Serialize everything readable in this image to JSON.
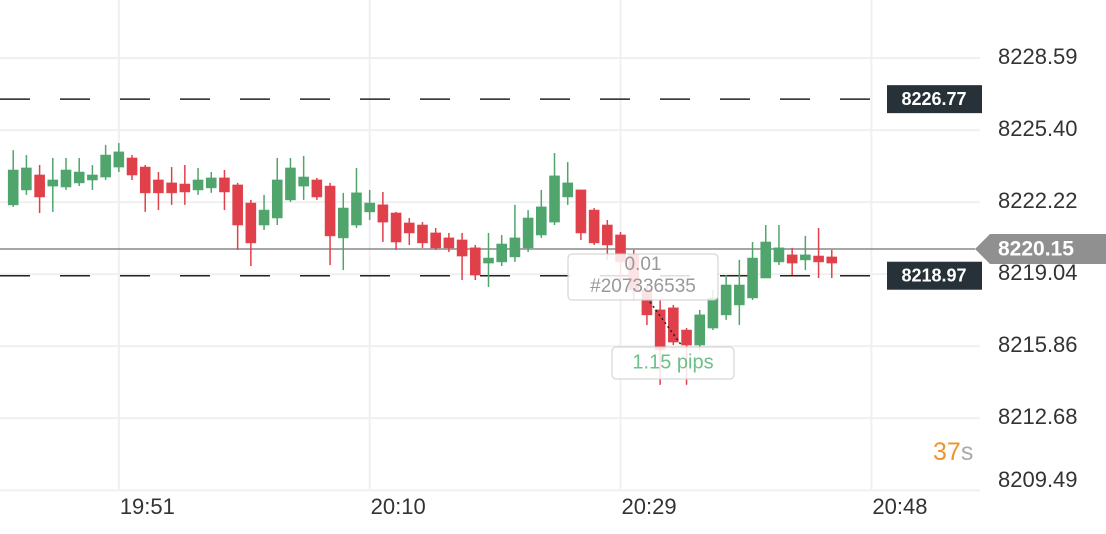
{
  "chart_data": {
    "type": "candlestick",
    "x": [
      "19:43",
      "19:44",
      "19:45",
      "19:46",
      "19:47",
      "19:48",
      "19:49",
      "19:50",
      "19:51",
      "19:52",
      "19:53",
      "19:54",
      "19:55",
      "19:56",
      "19:57",
      "19:58",
      "19:59",
      "20:00",
      "20:01",
      "20:02",
      "20:03",
      "20:04",
      "20:05",
      "20:06",
      "20:07",
      "20:08",
      "20:09",
      "20:10",
      "20:11",
      "20:12",
      "20:13",
      "20:14",
      "20:15",
      "20:16",
      "20:17",
      "20:18",
      "20:19",
      "20:20",
      "20:21",
      "20:22",
      "20:23",
      "20:24",
      "20:25",
      "20:26",
      "20:27",
      "20:28",
      "20:29",
      "20:30",
      "20:31",
      "20:32",
      "20:33",
      "20:34",
      "20:35",
      "20:36",
      "20:37",
      "20:38",
      "20:39",
      "20:40",
      "20:41",
      "20:42",
      "20:43",
      "20:44",
      "20:45"
    ],
    "open": [
      8222.1,
      8222.76,
      8223.42,
      8222.93,
      8222.89,
      8223.07,
      8223.2,
      8223.33,
      8223.77,
      8224.17,
      8223.77,
      8223.2,
      8223.07,
      8223.02,
      8222.76,
      8222.85,
      8223.29,
      8222.98,
      8222.18,
      8221.21,
      8221.52,
      8222.32,
      8222.93,
      8223.2,
      8222.93,
      8220.64,
      8221.21,
      8221.79,
      8222.1,
      8221.74,
      8221.3,
      8221.21,
      8220.86,
      8220.64,
      8220.55,
      8220.2,
      8219.53,
      8219.58,
      8219.8,
      8220.2,
      8220.77,
      8221.34,
      8222.45,
      8222.76,
      8221.87,
      8221.21,
      8220.77,
      8219.89,
      8218.34,
      8217.46,
      8217.55,
      8216.57,
      8215.91,
      8216.66,
      8217.24,
      8217.68,
      8217.99,
      8218.87,
      8219.58,
      8219.89,
      8219.67,
      8219.84,
      8219.8
    ],
    "high": [
      8224.52,
      8224.3,
      8223.86,
      8224.17,
      8224.17,
      8224.17,
      8223.86,
      8224.75,
      8224.83,
      8224.3,
      8223.86,
      8223.55,
      8223.77,
      8223.86,
      8223.73,
      8223.55,
      8223.64,
      8223.07,
      8222.32,
      8222.54,
      8224.17,
      8224.17,
      8224.26,
      8223.29,
      8223.07,
      8222.63,
      8223.73,
      8222.76,
      8222.67,
      8221.79,
      8221.52,
      8221.34,
      8221.08,
      8220.86,
      8220.86,
      8220.33,
      8220.86,
      8220.77,
      8222.1,
      8221.87,
      8222.76,
      8224.39,
      8223.99,
      8222.76,
      8221.96,
      8221.43,
      8220.9,
      8220.11,
      8218.56,
      8217.9,
      8217.68,
      8216.66,
      8217.46,
      8218.34,
      8219.0,
      8219.67,
      8220.46,
      8221.21,
      8221.21,
      8220.2,
      8220.73,
      8221.08,
      8220.11
    ],
    "low": [
      8222.01,
      8222.54,
      8221.74,
      8221.79,
      8222.76,
      8222.93,
      8222.76,
      8223.2,
      8223.55,
      8223.2,
      8221.79,
      8221.87,
      8222.1,
      8222.1,
      8222.54,
      8222.63,
      8221.87,
      8220.11,
      8219.4,
      8220.99,
      8221.21,
      8222.23,
      8222.32,
      8222.32,
      8219.44,
      8219.22,
      8221.08,
      8221.43,
      8220.46,
      8220.11,
      8220.33,
      8220.2,
      8220.11,
      8220.02,
      8218.78,
      8218.78,
      8218.47,
      8219.4,
      8219.58,
      8220.02,
      8220.64,
      8221.21,
      8222.1,
      8220.55,
      8220.33,
      8219.67,
      8218.78,
      8217.9,
      8216.79,
      8214.15,
      8215.91,
      8214.15,
      8215.69,
      8216.57,
      8217.02,
      8216.79,
      8217.9,
      8218.87,
      8219.44,
      8219.0,
      8219.22,
      8218.87,
      8218.87
    ],
    "close": [
      8223.64,
      8223.73,
      8222.45,
      8223.2,
      8223.64,
      8223.55,
      8223.42,
      8224.3,
      8224.44,
      8223.42,
      8222.63,
      8222.63,
      8222.63,
      8222.67,
      8223.2,
      8223.29,
      8222.67,
      8221.21,
      8220.42,
      8221.87,
      8223.2,
      8223.73,
      8223.33,
      8222.45,
      8220.73,
      8221.96,
      8222.63,
      8222.18,
      8221.34,
      8220.46,
      8220.86,
      8220.42,
      8220.2,
      8220.2,
      8219.84,
      8219.0,
      8219.75,
      8220.37,
      8220.64,
      8221.52,
      8222.01,
      8223.38,
      8223.07,
      8220.86,
      8220.42,
      8220.33,
      8219.58,
      8218.34,
      8217.24,
      8215.69,
      8216.04,
      8215.91,
      8217.24,
      8217.99,
      8218.56,
      8218.56,
      8219.75,
      8220.46,
      8220.2,
      8219.53,
      8219.89,
      8219.58,
      8219.53
    ],
    "up_color": "#4fa56c",
    "down_color": "#e0404a",
    "xlim": [
      "19:42",
      "20:56"
    ],
    "xticks": [
      "19:51",
      "20:10",
      "20:29",
      "20:48"
    ],
    "ylim": [
      8209.46,
      8231.15
    ],
    "yticks": [
      8228.59,
      {
        "value": 8225.4,
        "label": "8225.40"
      },
      8222.22,
      8219.04,
      8215.86,
      8212.68,
      8209.49
    ],
    "grid": true,
    "levels": [
      8226.77,
      8218.97
    ],
    "price_line": 8220.15,
    "order_volume": 0.01,
    "order_id": "#207336535",
    "pips_label": "1.15 pips",
    "countdown": 37,
    "countdown_unit": "s"
  }
}
